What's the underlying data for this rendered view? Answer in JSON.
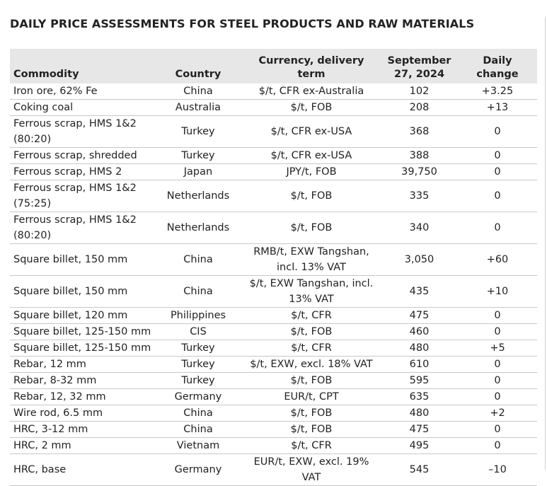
{
  "title": "DAILY PRICE ASSESSMENTS FOR STEEL PRODUCTS AND RAW MATERIALS",
  "headers": {
    "commodity": "Commodity",
    "country": "Country",
    "currency": "Currency, delivery term",
    "date": "September 27, 2024",
    "change": "Daily change"
  },
  "rows": [
    {
      "commodity": "Iron ore, 62% Fe",
      "country": "China",
      "currency": "$/t, CFR ex-Australia",
      "price": "102",
      "change": "+3.25"
    },
    {
      "commodity": "Coking coal",
      "country": "Australia",
      "currency": "$/t, FOB",
      "price": "208",
      "change": "+13"
    },
    {
      "commodity": "Ferrous scrap, HMS 1&2 (80:20)",
      "country": "Turkey",
      "currency": "$/t, CFR ex-USA",
      "price": "368",
      "change": "0"
    },
    {
      "commodity": "Ferrous scrap, shredded",
      "country": "Turkey",
      "currency": "$/t, CFR ex-USA",
      "price": "388",
      "change": "0"
    },
    {
      "commodity": "Ferrous scrap, HMS 2",
      "country": "Japan",
      "currency": "JPY/t, FOB",
      "price": "39,750",
      "change": "0"
    },
    {
      "commodity": "Ferrous scrap, HMS 1&2 (75:25)",
      "country": "Netherlands",
      "currency": "$/t, FOB",
      "price": "335",
      "change": "0"
    },
    {
      "commodity": "Ferrous scrap, HMS 1&2 (80:20)",
      "country": "Netherlands",
      "currency": "$/t, FOB",
      "price": "340",
      "change": "0"
    },
    {
      "commodity": "Square billet, 150 mm",
      "country": "China",
      "currency": "RMB/t, EXW Tangshan, incl. 13% VAT",
      "price": "3,050",
      "change": "+60"
    },
    {
      "commodity": "Square billet, 150 mm",
      "country": "China",
      "currency": "$/t, EXW Tangshan, incl. 13% VAT",
      "price": "435",
      "change": "+10"
    },
    {
      "commodity": "Square billet, 120 mm",
      "country": "Philippines",
      "currency": "$/t, CFR",
      "price": "475",
      "change": "0"
    },
    {
      "commodity": "Square billet, 125-150 mm",
      "country": "CIS",
      "currency": "$/t, FOB",
      "price": "460",
      "change": "0"
    },
    {
      "commodity": "Square billet, 125-150 mm",
      "country": "Turkey",
      "currency": "$/t, CFR",
      "price": "480",
      "change": "+5"
    },
    {
      "commodity": "Rebar, 12 mm",
      "country": "Turkey",
      "currency": "$/t, EXW, excl. 18% VAT",
      "price": "610",
      "change": "0"
    },
    {
      "commodity": "Rebar, 8-32 mm",
      "country": "Turkey",
      "currency": "$/t, FOB",
      "price": "595",
      "change": "0"
    },
    {
      "commodity": "Rebar, 12, 32 mm",
      "country": "Germany",
      "currency": "EUR/t, CPT",
      "price": "635",
      "change": "0"
    },
    {
      "commodity": "Wire rod, 6.5 mm",
      "country": "China",
      "currency": "$/t, FOB",
      "price": "480",
      "change": "+2"
    },
    {
      "commodity": "HRC, 3-12 mm",
      "country": "China",
      "currency": "$/t, FOB",
      "price": "475",
      "change": "0"
    },
    {
      "commodity": "HRC, 2 mm",
      "country": "Vietnam",
      "currency": "$/t, CFR",
      "price": "495",
      "change": "0"
    },
    {
      "commodity": "HRC, base",
      "country": "Germany",
      "currency": "EUR/t, EXW, excl. 19% VAT",
      "price": "545",
      "change": "–10"
    }
  ]
}
